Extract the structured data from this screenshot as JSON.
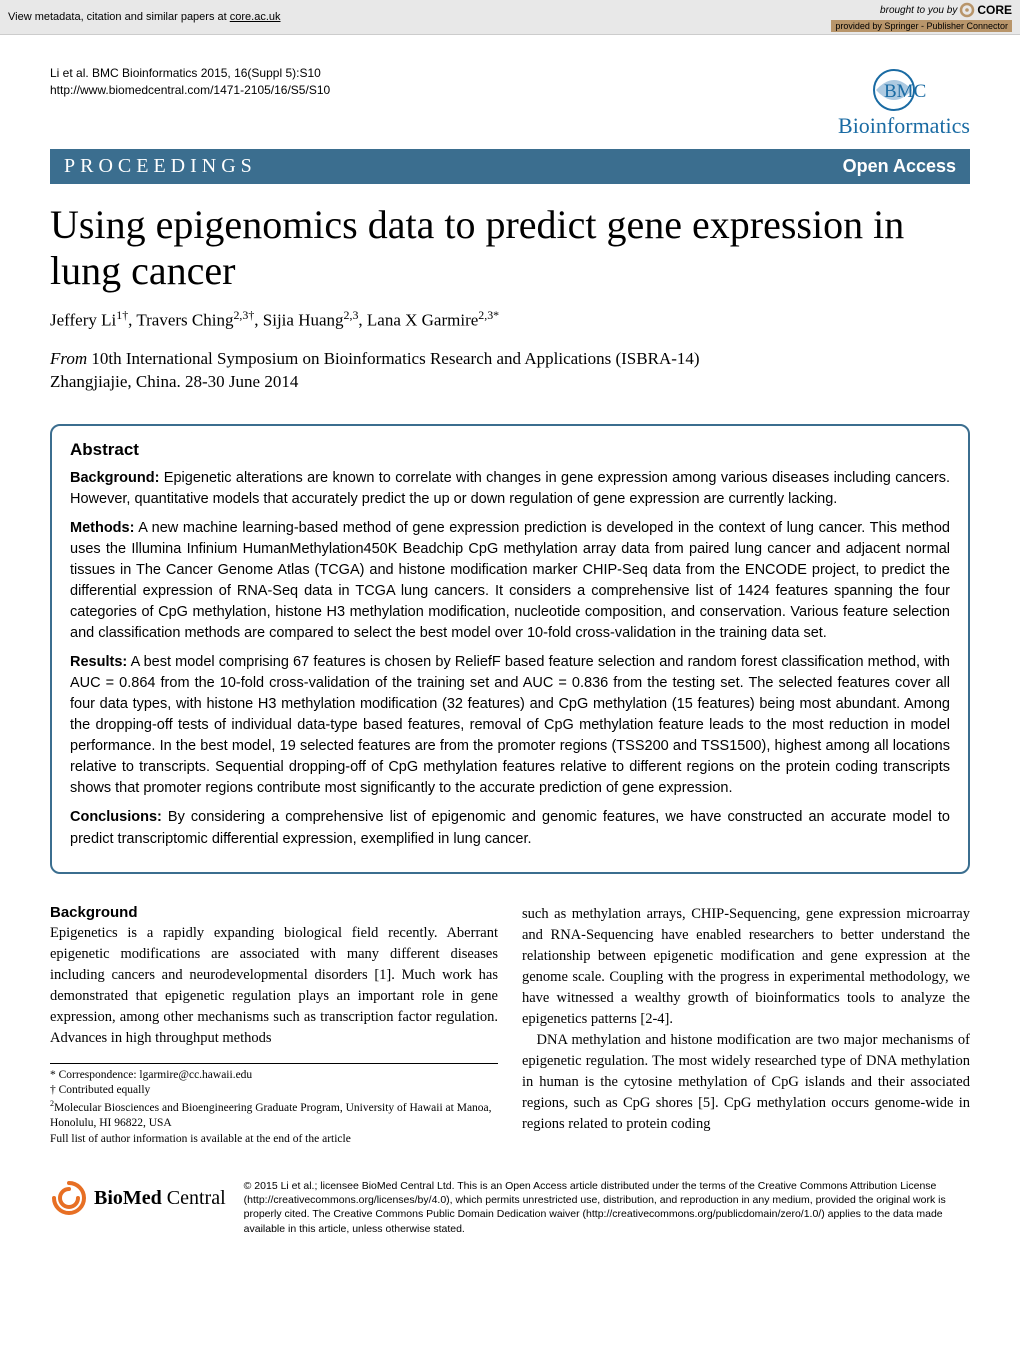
{
  "core_bar": {
    "left_prefix": "View metadata, citation and similar papers at ",
    "left_link": "core.ac.uk",
    "brought_by": "brought to you by",
    "logo_text": "CORE",
    "provided_by": "provided by Springer - Publisher Connector"
  },
  "header": {
    "citation_line1": "Li et al. BMC Bioinformatics 2015, 16(Suppl 5):S10",
    "citation_line2": "http://www.biomedcentral.com/1471-2105/16/S5/S10",
    "journal_name": "Bioinformatics"
  },
  "banner": {
    "left": "PROCEEDINGS",
    "right": "Open Access"
  },
  "title": "Using epigenomics data to predict gene expression in lung cancer",
  "authors_html": "Jeffery Li<sup>1†</sup>, Travers Ching<sup>2,3†</sup>, Sijia Huang<sup>2,3</sup>, Lana X Garmire<sup>2,3*</sup>",
  "from": {
    "label": "From",
    "conf": "10th International Symposium on Bioinformatics Research and Applications (ISBRA-14)",
    "loc": "Zhangjiajie, China. 28-30 June 2014"
  },
  "abstract": {
    "heading": "Abstract",
    "sections": [
      {
        "label": "Background:",
        "text": "Epigenetic alterations are known to correlate with changes in gene expression among various diseases including cancers. However, quantitative models that accurately predict the up or down regulation of gene expression are currently lacking."
      },
      {
        "label": "Methods:",
        "text": "A new machine learning-based method of gene expression prediction is developed in the context of lung cancer. This method uses the Illumina Infinium HumanMethylation450K Beadchip CpG methylation array data from paired lung cancer and adjacent normal tissues in The Cancer Genome Atlas (TCGA) and histone modification marker CHIP-Seq data from the ENCODE project, to predict the differential expression of RNA-Seq data in TCGA lung cancers. It considers a comprehensive list of 1424 features spanning the four categories of CpG methylation, histone H3 methylation modification, nucleotide composition, and conservation. Various feature selection and classification methods are compared to select the best model over 10-fold cross-validation in the training data set."
      },
      {
        "label": "Results:",
        "text": "A best model comprising 67 features is chosen by ReliefF based feature selection and random forest classification method, with AUC = 0.864 from the 10-fold cross-validation of the training set and AUC = 0.836 from the testing set. The selected features cover all four data types, with histone H3 methylation modification (32 features) and CpG methylation (15 features) being most abundant. Among the dropping-off tests of individual data-type based features, removal of CpG methylation feature leads to the most reduction in model performance. In the best model, 19 selected features are from the promoter regions (TSS200 and TSS1500), highest among all locations relative to transcripts. Sequential dropping-off of CpG methylation features relative to different regions on the protein coding transcripts shows that promoter regions contribute most significantly to the accurate prediction of gene expression."
      },
      {
        "label": "Conclusions:",
        "text": "By considering a comprehensive list of epigenomic and genomic features, we have constructed an accurate model to predict transcriptomic differential expression, exemplified in lung cancer."
      }
    ]
  },
  "body": {
    "heading": "Background",
    "col1": "Epigenetics is a rapidly expanding biological field recently. Aberrant epigenetic modifications are associated with many different diseases including cancers and neurodevelopmental disorders [1]. Much work has demonstrated that epigenetic regulation plays an important role in gene expression, among other mechanisms such as transcription factor regulation. Advances in high throughput methods",
    "col2_p1": "such as methylation arrays, CHIP-Sequencing, gene expression microarray and RNA-Sequencing have enabled researchers to better understand the relationship between epigenetic modification and gene expression at the genome scale. Coupling with the progress in experimental methodology, we have witnessed a wealthy growth of bioinformatics tools to analyze the epigenetics patterns [2-4].",
    "col2_p2": "DNA methylation and histone modification are two major mechanisms of epigenetic regulation. The most widely researched type of DNA methylation in human is the cytosine methylation of CpG islands and their associated regions, such as CpG shores [5]. CpG methylation occurs genome-wide in regions related to protein coding"
  },
  "footnotes": {
    "correspondence_label": "* Correspondence: ",
    "correspondence_email": "lgarmire@cc.hawaii.edu",
    "contrib": "† Contributed equally",
    "affil2": "Molecular Biosciences and Bioengineering Graduate Program, University of Hawaii at Manoa, Honolulu, HI 96822, USA",
    "full_list": "Full list of author information is available at the end of the article"
  },
  "footer": {
    "bmc_bold": "BioMed",
    "bmc_rest": " Central",
    "copyright": "© 2015 Li et al.; licensee BioMed Central Ltd. This is an Open Access article distributed under the terms of the Creative Commons Attribution License (http://creativecommons.org/licenses/by/4.0), which permits unrestricted use, distribution, and reproduction in any medium, provided the original work is properly cited. The Creative Commons Public Domain Dedication waiver (http://creativecommons.org/publicdomain/zero/1.0/) applies to the data made available in this article, unless otherwise stated."
  },
  "colors": {
    "banner_bg": "#3b6e8f",
    "link": "#0000ee",
    "core_provided_bg": "#b8956a"
  }
}
